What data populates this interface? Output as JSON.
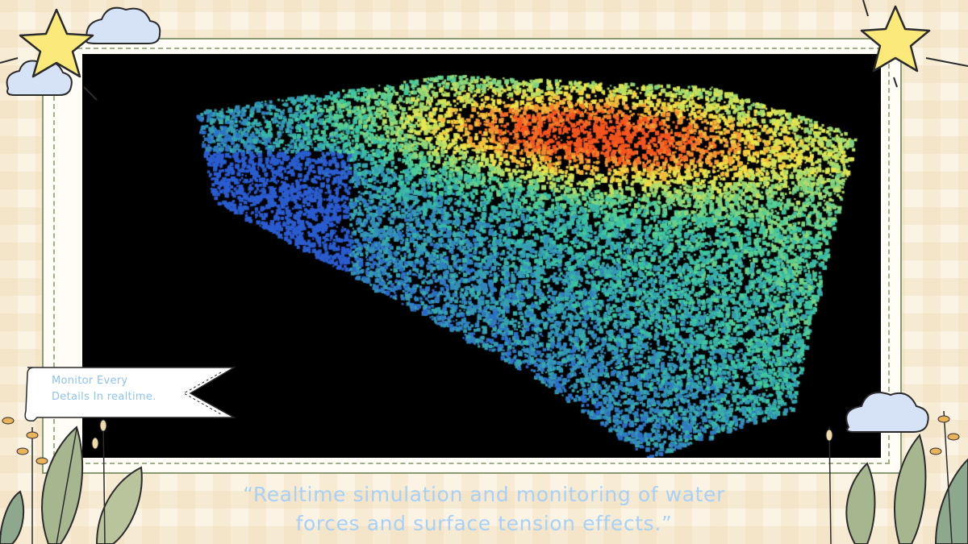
{
  "banner": {
    "line1": "Monitor Every",
    "line2": "Details In realtime."
  },
  "caption": {
    "line1": "“Realtime simulation and monitoring of water",
    "line2": "forces and surface tension effects.”"
  },
  "colors": {
    "background": "#fbf4e4",
    "frame_border": "#8a9a73",
    "text_blue": "#8fc3ef",
    "star": "#fbe97a",
    "cloud": "#d6e3f7",
    "leaf": "#a6b68e",
    "particle_low": "#2a5ccf",
    "particle_mid": "#3cc7a0",
    "particle_high": "#f0e84a",
    "particle_peak": "#f4541e"
  },
  "icons": [
    "star-icon",
    "cloud-icon",
    "leaf-branch-icon",
    "ribbon-banner"
  ]
}
